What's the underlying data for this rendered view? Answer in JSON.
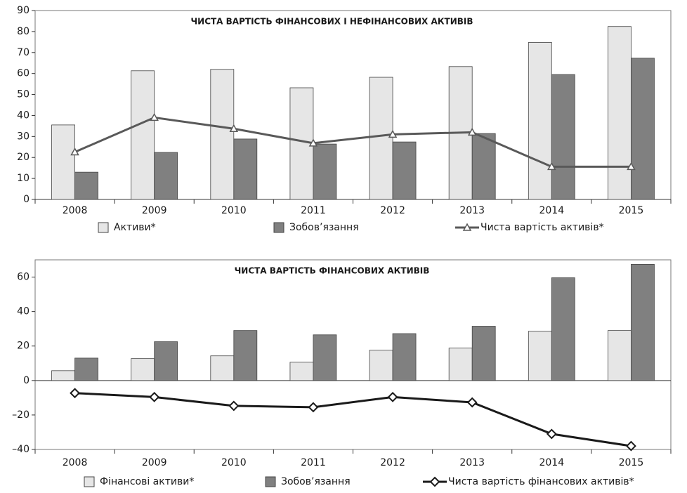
{
  "chart_data": [
    {
      "type": "bar",
      "title": "ЧИСТА ВАРТІСТЬ ФІНАНСОВИХ І НЕФІНАНСОВИХ АКТИВІВ",
      "categories": [
        "2008",
        "2009",
        "2010",
        "2011",
        "2012",
        "2013",
        "2014",
        "2015"
      ],
      "series": [
        {
          "name": "Активи*",
          "type": "bar",
          "color": "#e6e6e6",
          "values": [
            35.5,
            61.3,
            62,
            53.2,
            58.2,
            63.3,
            74.8,
            82.4
          ]
        },
        {
          "name": "Зобов’язання",
          "type": "bar",
          "color": "#808080",
          "values": [
            13,
            22.4,
            28.8,
            26.4,
            27.4,
            31.4,
            59.5,
            67.3
          ]
        },
        {
          "name": "Чиста вартість активів*",
          "type": "line",
          "marker": "triangle",
          "color": "#595959",
          "values": [
            22.6,
            39,
            33.7,
            26.8,
            31,
            32,
            15.6,
            15.6
          ]
        }
      ],
      "ylim": [
        0,
        90
      ],
      "yticks": [
        0,
        10,
        20,
        30,
        40,
        50,
        60,
        70,
        80,
        90
      ],
      "grid": false,
      "legend": "bottom"
    },
    {
      "type": "bar",
      "title": "ЧИСТА ВАРТІСТЬ ФІНАНСОВИХ АКТИВІВ",
      "categories": [
        "2008",
        "2009",
        "2010",
        "2011",
        "2012",
        "2013",
        "2014",
        "2015"
      ],
      "series": [
        {
          "name": "Фінансові активи*",
          "type": "bar",
          "color": "#e6e6e6",
          "values": [
            5.7,
            12.7,
            14.3,
            10.6,
            17.6,
            18.8,
            28.6,
            29
          ]
        },
        {
          "name": "Зобов’язання",
          "type": "bar",
          "color": "#808080",
          "values": [
            13,
            22.5,
            29,
            26.5,
            27.2,
            31.5,
            59.6,
            67.4
          ]
        },
        {
          "name": "Чиста вартість фінансових активів*",
          "type": "line",
          "marker": "diamond",
          "color": "#1a1a1a",
          "values": [
            -7.3,
            -9.6,
            -14.7,
            -15.5,
            -9.6,
            -12.7,
            -31,
            -38
          ]
        }
      ],
      "ylim": [
        -40,
        70
      ],
      "yticks": [
        {
          "value": -40,
          "label": "–40"
        },
        {
          "value": -20,
          "label": "–20"
        },
        0,
        20,
        40,
        60
      ],
      "grid": false,
      "legend": "bottom"
    }
  ]
}
